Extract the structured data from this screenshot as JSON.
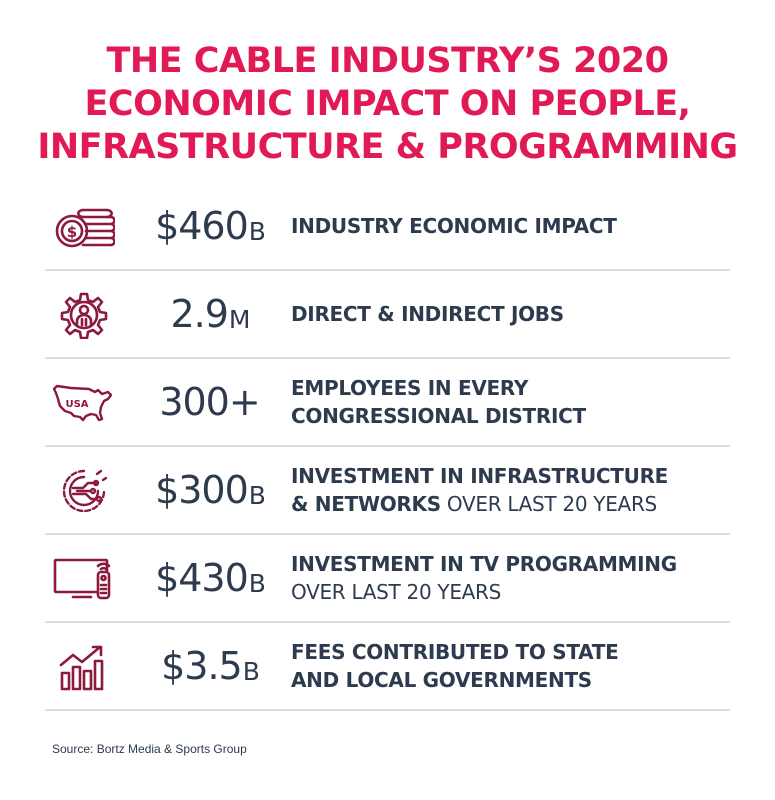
{
  "title": {
    "line1": "THE CABLE INDUSTRY’S 2020",
    "line2": "ECONOMIC IMPACT ON PEOPLE,",
    "line3": "INFRASTRUCTURE & PROGRAMMING"
  },
  "colors": {
    "accent": "#e11a55",
    "icon": "#8b1a3d",
    "text": "#2e3b4e",
    "divider": "#dcdcdc"
  },
  "rows": [
    {
      "icon": "coins-icon",
      "number": "$460",
      "unit": "B",
      "line1": "INDUSTRY ECONOMIC IMPACT",
      "line2a": "",
      "line2b": ""
    },
    {
      "icon": "gear-person-icon",
      "number": "2.9",
      "unit": "M",
      "line1": "DIRECT & INDIRECT JOBS",
      "line2a": "",
      "line2b": ""
    },
    {
      "icon": "usa-map-icon",
      "icon_label": "USA",
      "number": "300+",
      "unit": "",
      "line1": "EMPLOYEES IN EVERY",
      "line2a": "CONGRESSIONAL DISTRICT",
      "line2b": ""
    },
    {
      "icon": "network-gear-icon",
      "number": "$300",
      "unit": "B",
      "line1": "INVESTMENT IN INFRASTRUCTURE",
      "line2a": "& NETWORKS",
      "line2b": " OVER LAST 20 YEARS"
    },
    {
      "icon": "tv-remote-icon",
      "number": "$430",
      "unit": "B",
      "line1": "INVESTMENT IN TV PROGRAMMING",
      "line2a": "",
      "line2b": "OVER LAST 20 YEARS"
    },
    {
      "icon": "growth-chart-icon",
      "number": "$3.5",
      "unit": "B",
      "line1": "FEES CONTRIBUTED TO STATE",
      "line2a": "AND LOCAL GOVERNMENTS",
      "line2b": ""
    }
  ],
  "source": "Source: Bortz Media & Sports Group"
}
